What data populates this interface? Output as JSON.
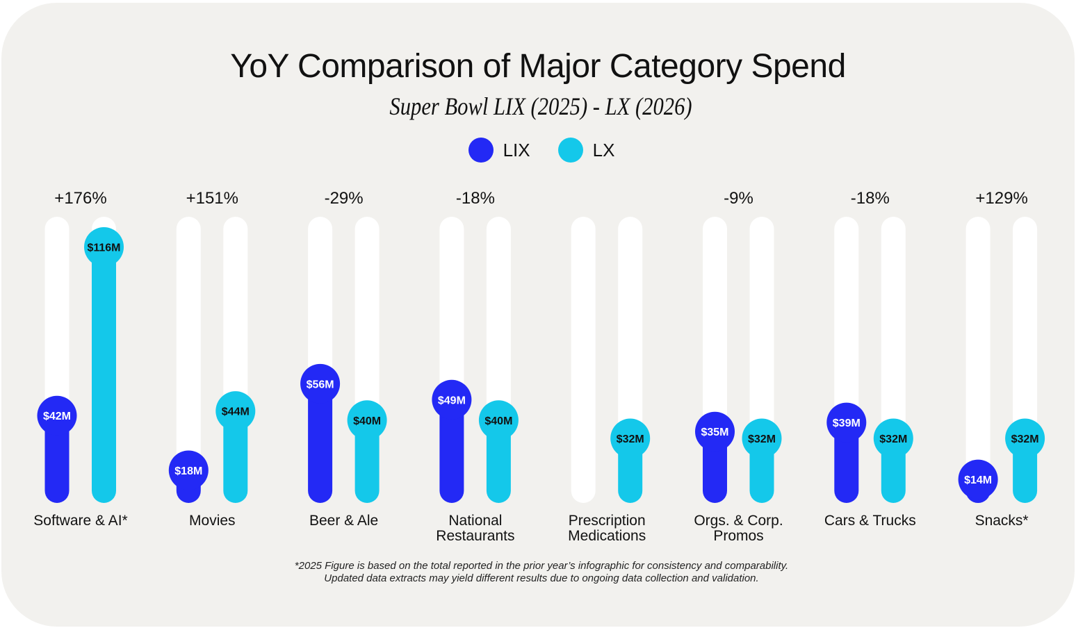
{
  "chart_data": {
    "type": "bar",
    "title": "YoY Comparison of Major Category Spend",
    "subtitle": "Super Bowl LIX (2025) - LX (2026)",
    "categories": [
      "Software & AI*",
      "Movies",
      "Beer & Ale",
      "National Restaurants",
      "Prescription Medications",
      "Orgs. & Corp. Promos",
      "Cars & Trucks",
      "Snacks*"
    ],
    "category_lines": [
      [
        "Software & AI*"
      ],
      [
        "Movies"
      ],
      [
        "Beer & Ale"
      ],
      [
        "National",
        "Restaurants"
      ],
      [
        "Prescription",
        "Medications"
      ],
      [
        "Orgs. & Corp.",
        "Promos"
      ],
      [
        "Cars & Trucks"
      ],
      [
        "Snacks*"
      ]
    ],
    "changes": [
      "+176%",
      "+151%",
      "-29%",
      "-18%",
      "",
      "-9%",
      "-18%",
      "+129%"
    ],
    "series": [
      {
        "name": "LIX",
        "color": "#2329f5",
        "label_color": "#ffffff",
        "values": [
          42,
          18,
          56,
          49,
          null,
          35,
          39,
          14
        ],
        "labels": [
          "$42M",
          "$18M",
          "$56M",
          "$49M",
          "",
          "$35M",
          "$39M",
          "$14M"
        ]
      },
      {
        "name": "LX",
        "color": "#14c8ea",
        "label_color": "#111111",
        "values": [
          116,
          44,
          40,
          40,
          32,
          32,
          32,
          32
        ],
        "labels": [
          "$116M",
          "$44M",
          "$40M",
          "$40M",
          "$32M",
          "$32M",
          "$32M",
          "$32M"
        ]
      }
    ],
    "unit": "$M",
    "legend": "top-center",
    "grid": false
  },
  "footnote": [
    "*2025 Figure is based on the total reported in the prior year’s infographic for consistency and comparability.",
    "Updated data extracts may yield different results due to ongoing data collection and validation."
  ]
}
